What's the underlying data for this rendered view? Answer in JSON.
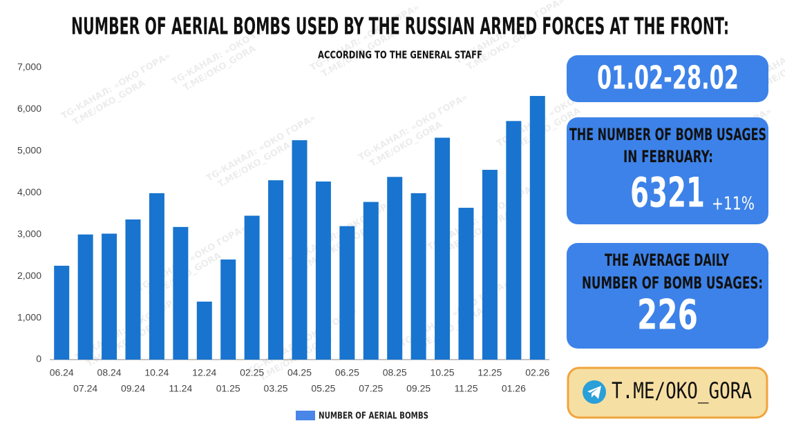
{
  "chart_data": {
    "type": "bar",
    "title": "NUMBER OF AERIAL BOMBS USED BY THE RUSSIAN ARMED FORCES AT THE FRONT:",
    "subtitle": "ACCORDING TO THE GENERAL STAFF",
    "categories": [
      "06.24",
      "07.24",
      "08.24",
      "09.24",
      "10.24",
      "11.24",
      "12.24",
      "01.25",
      "02.25",
      "03.25",
      "04.25",
      "05.25",
      "06.25",
      "07.25",
      "08.25",
      "09.25",
      "10.25",
      "11.25",
      "12.25",
      "01.26",
      "02.26"
    ],
    "series": [
      {
        "name": "NUMBER OF AERIAL BOMBS",
        "color": "#1874cf",
        "values": [
          2250,
          3000,
          3020,
          3360,
          3990,
          3180,
          1390,
          2400,
          3450,
          4300,
          5260,
          4270,
          3200,
          3780,
          4380,
          3990,
          5320,
          3640,
          4550,
          5720,
          6321
        ]
      }
    ],
    "legend_color": "#4a86e8",
    "ylim": [
      0,
      7000
    ],
    "yticks": [
      0,
      {
        "value": 1000,
        "label": "1,000"
      },
      {
        "value": 2000,
        "label": "2,000"
      },
      {
        "value": 3000,
        "label": "3,000"
      },
      {
        "value": 4000,
        "label": "4,000"
      },
      {
        "value": 5000,
        "label": "5,000"
      },
      {
        "value": 6000,
        "label": "6,000"
      },
      {
        "value": 7000,
        "label": "7,000"
      }
    ],
    "grid": false,
    "legend": "bottom"
  },
  "panels": {
    "period": "01.02-28.02",
    "february": {
      "line1": "THE NUMBER OF BOMB USAGES",
      "line2": "IN FEBRUARY:",
      "value": "6321",
      "change": "+11%"
    },
    "daily": {
      "line1": "THE AVERAGE DAILY",
      "line2": "NUMBER OF BOMB USAGES:",
      "value": "226"
    },
    "link": "T.ME/OKO_GORA"
  },
  "watermark": {
    "line1": "TG-КАНАЛ: «ОКО ГОРА»",
    "line2": "T.ME/OKO_GORA"
  }
}
